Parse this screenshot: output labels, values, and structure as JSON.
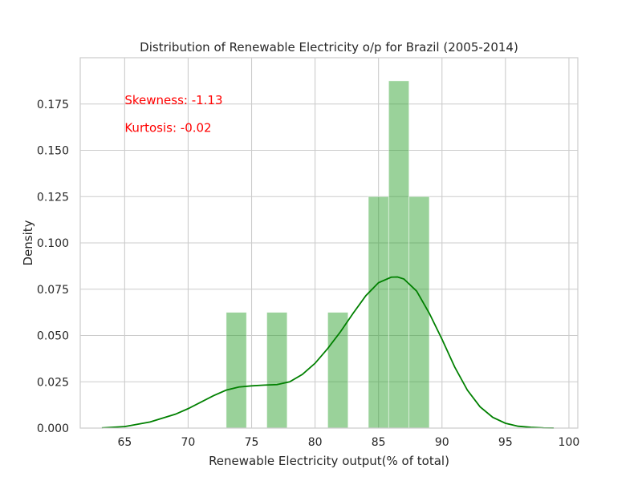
{
  "chart_data": {
    "type": "bar",
    "title": "Distribution of Renewable Electricity o/p for Brazil (2005-2014)",
    "xlabel": "Renewable Electricity output(% of total)",
    "ylabel": "Density",
    "xlim": [
      61.5,
      100.7
    ],
    "ylim": [
      0,
      0.2
    ],
    "xticks": [
      65,
      70,
      75,
      80,
      85,
      90,
      95,
      100
    ],
    "yticks": [
      0.0,
      0.025,
      0.05,
      0.075,
      0.1,
      0.125,
      0.15,
      0.175
    ],
    "ytick_labels": [
      "0.000",
      "0.025",
      "0.050",
      "0.075",
      "0.100",
      "0.125",
      "0.150",
      "0.175"
    ],
    "grid": true,
    "histogram": {
      "color": "#2ca02c",
      "bins": [
        {
          "x0": 73.0,
          "x1": 74.6,
          "density": 0.0625
        },
        {
          "x0": 76.2,
          "x1": 77.8,
          "density": 0.0625
        },
        {
          "x0": 81.0,
          "x1": 82.6,
          "density": 0.0625
        },
        {
          "x0": 84.2,
          "x1": 85.8,
          "density": 0.125
        },
        {
          "x0": 85.8,
          "x1": 87.4,
          "density": 0.1875
        },
        {
          "x0": 87.4,
          "x1": 89.0,
          "density": 0.125
        }
      ]
    },
    "kde": {
      "color": "#008000",
      "x": [
        63.2,
        65,
        67,
        69,
        70,
        71,
        72,
        73,
        74,
        75,
        76,
        77,
        78,
        79,
        80,
        81,
        82,
        83,
        84,
        85,
        86,
        86.5,
        87,
        88,
        89,
        90,
        91,
        92,
        93,
        94,
        95,
        96,
        97,
        98,
        98.8
      ],
      "y": [
        0.0001,
        0.0008,
        0.0033,
        0.0075,
        0.0105,
        0.014,
        0.0175,
        0.0205,
        0.0222,
        0.0228,
        0.0232,
        0.0235,
        0.025,
        0.029,
        0.035,
        0.043,
        0.052,
        0.062,
        0.0715,
        0.0785,
        0.0815,
        0.0816,
        0.0805,
        0.074,
        0.062,
        0.048,
        0.033,
        0.0205,
        0.0115,
        0.0058,
        0.0026,
        0.001,
        0.0004,
        0.0001,
        5e-05
      ]
    },
    "annotations": [
      {
        "text": "Skewness: -1.13",
        "x": 65,
        "y": 0.175,
        "color": "#ff0000"
      },
      {
        "text": "Kurtosis: -0.02",
        "x": 65,
        "y": 0.16,
        "color": "#ff0000"
      }
    ]
  }
}
